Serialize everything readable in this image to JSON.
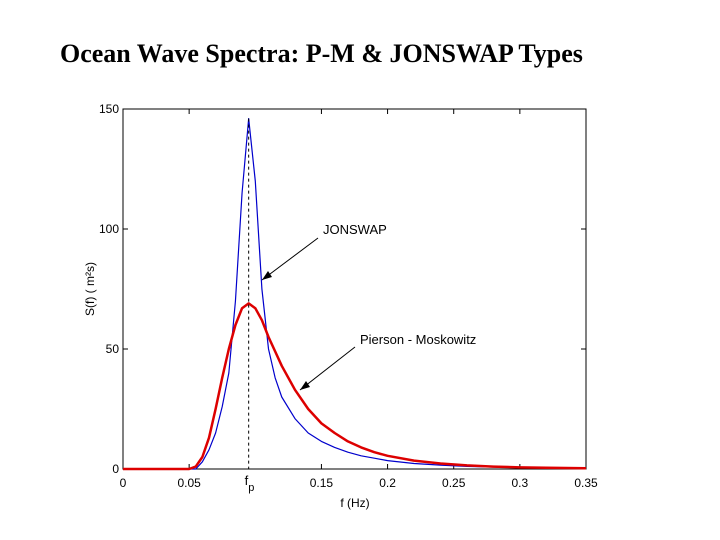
{
  "chart_data": {
    "type": "line",
    "title": "Ocean Wave Spectra: P-M & JONSWAP Types",
    "x_label": "f (Hz)",
    "y_label": "S(f) ( m²s)",
    "x": [
      0,
      0.05,
      0.055,
      0.06,
      0.065,
      0.07,
      0.075,
      0.08,
      0.085,
      0.09,
      0.095,
      0.1,
      0.105,
      0.11,
      0.115,
      0.12,
      0.13,
      0.14,
      0.15,
      0.16,
      0.17,
      0.18,
      0.19,
      0.2,
      0.22,
      0.24,
      0.26,
      0.28,
      0.3,
      0.32,
      0.35
    ],
    "series": [
      {
        "name": "JONSWAP",
        "color": "#0000cc",
        "values": [
          0,
          0,
          0,
          3,
          8,
          15,
          26,
          40,
          70,
          115,
          146,
          120,
          75,
          50,
          38,
          30,
          21,
          15,
          11.5,
          9,
          7,
          5.5,
          4.5,
          3.5,
          2.3,
          1.6,
          1.1,
          0.8,
          0.6,
          0.4,
          0.3
        ]
      },
      {
        "name": "Pierson - Moskowitz",
        "color": "#dd0000",
        "values": [
          0,
          0,
          1,
          5,
          13,
          25,
          38,
          50,
          60,
          67,
          69,
          67,
          62,
          55,
          49,
          43,
          33,
          25,
          19,
          15,
          11.5,
          9,
          7,
          5.5,
          3.5,
          2.3,
          1.5,
          1,
          0.7,
          0.5,
          0.3
        ]
      }
    ],
    "peak_frequency": 0.095,
    "peak_label": {
      "text": "f",
      "subscript": "p"
    },
    "xlim": [
      0,
      0.35
    ],
    "xticks": [
      0,
      0.05,
      0.15,
      0.2,
      0.25,
      0.3,
      0.35
    ],
    "ylim": [
      0,
      150
    ],
    "yticks": [
      0,
      50,
      100,
      150
    ],
    "grid": false
  }
}
